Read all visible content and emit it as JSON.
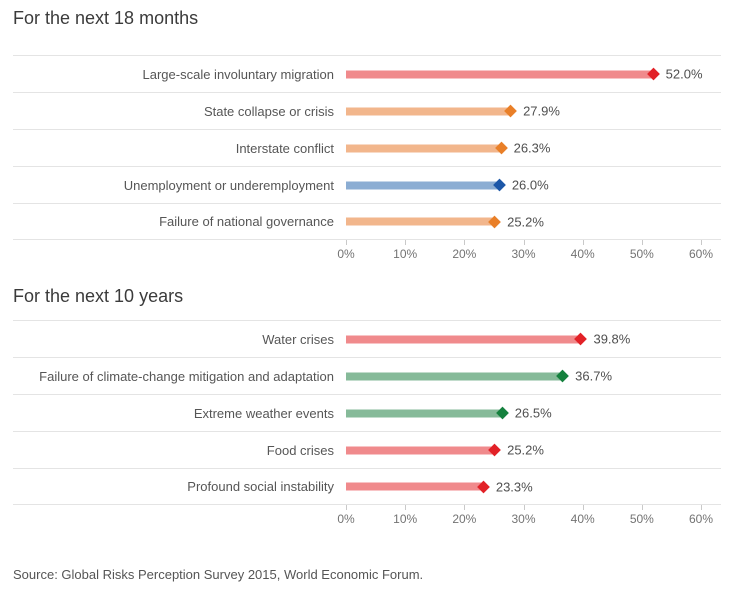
{
  "chart_data": [
    {
      "type": "bar",
      "orientation": "horizontal",
      "title": "For the next 18 months",
      "categories": [
        "Large-scale involuntary migration",
        "State collapse or crisis",
        "Interstate conflict",
        "Unemployment or underemployment",
        "Failure of national governance"
      ],
      "values": [
        52.0,
        27.9,
        26.3,
        26.0,
        25.2
      ],
      "value_labels": [
        "52.0%",
        "27.9%",
        "26.3%",
        "26.0%",
        "25.2%"
      ],
      "bar_colors": [
        "#f08a8c",
        "#f2b68c",
        "#f2b68c",
        "#8badd3",
        "#f2b68c"
      ],
      "marker_colors": [
        "#e22127",
        "#e97f28",
        "#e97f28",
        "#1c57a8",
        "#e97f28"
      ],
      "marker": "diamond",
      "xlim": [
        0,
        60
      ],
      "x_ticks": [
        "0%",
        "10%",
        "20%",
        "30%",
        "40%",
        "50%",
        "60%"
      ],
      "grid": false,
      "legend": "none"
    },
    {
      "type": "bar",
      "orientation": "horizontal",
      "title": "For the next 10 years",
      "categories": [
        "Water crises",
        "Failure of climate-change mitigation and adaptation",
        "Extreme weather events",
        "Food crises",
        "Profound social instability"
      ],
      "values": [
        39.8,
        36.7,
        26.5,
        25.2,
        23.3
      ],
      "value_labels": [
        "39.8%",
        "36.7%",
        "26.5%",
        "25.2%",
        "23.3%"
      ],
      "bar_colors": [
        "#f08a8c",
        "#86ba99",
        "#86ba99",
        "#f08a8c",
        "#f08a8c"
      ],
      "marker_colors": [
        "#e22127",
        "#15813e",
        "#15813e",
        "#e22127",
        "#e22127"
      ],
      "marker": "diamond",
      "xlim": [
        0,
        60
      ],
      "x_ticks": [
        "0%",
        "10%",
        "20%",
        "30%",
        "40%",
        "50%",
        "60%"
      ],
      "grid": false,
      "legend": "none"
    }
  ],
  "source": "Source: Global Risks Perception Survey 2015, World Economic Forum.",
  "colors": {
    "background": "#ffffff",
    "separator_line": "#e4e4e4",
    "title_text": "#3b3b3b",
    "label_text": "#565656",
    "value_text": "#4f4f4f",
    "axis_text": "#737373",
    "red_bar": "#f08a8c",
    "red_marker": "#e22127",
    "orange_bar": "#f2b68c",
    "orange_marker": "#e97f28",
    "blue_bar": "#8badd3",
    "blue_marker": "#1c57a8",
    "green_bar": "#86ba99",
    "green_marker": "#15813e"
  }
}
